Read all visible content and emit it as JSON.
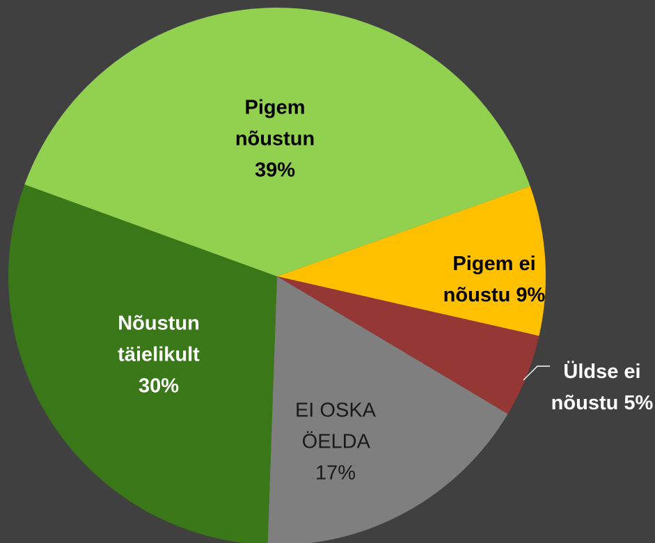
{
  "chart_data": {
    "type": "pie",
    "categories": [
      "Nõustun täielikult",
      "Pigem nõustun",
      "Pigem ei nõustu",
      "Üldse ei nõustu",
      "EI OSKA ÖELDA"
    ],
    "values": [
      30,
      39,
      9,
      5,
      17
    ],
    "value_labels": [
      "30%",
      "39%",
      "9%",
      "5%",
      "17%"
    ],
    "colors": [
      "#3a7718",
      "#92d050",
      "#ffc000",
      "#953735",
      "#7f7f7f"
    ]
  }
}
